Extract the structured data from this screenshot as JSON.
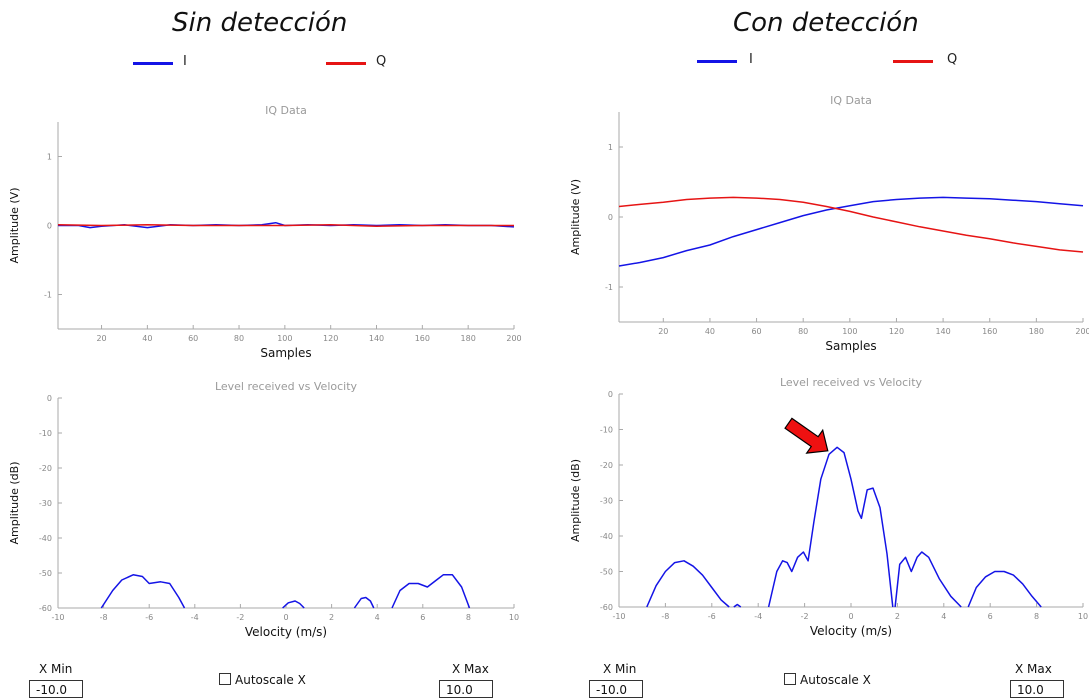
{
  "panels": [
    {
      "title": "Sin detección",
      "legend": [
        {
          "label": "I",
          "color": "#1414e6"
        },
        {
          "label": "Q",
          "color": "#e61414"
        }
      ],
      "controls": {
        "xmin_label": "X Min",
        "xmin_value": "-10.0",
        "autoscale_label": "Autoscale X",
        "xmax_label": "X Max",
        "xmax_value": "10.0"
      }
    },
    {
      "title": "Con detección",
      "legend": [
        {
          "label": "I",
          "color": "#1414e6"
        },
        {
          "label": "Q",
          "color": "#e61414"
        }
      ],
      "controls": {
        "xmin_label": "X Min",
        "xmin_value": "-10.0",
        "autoscale_label": "Autoscale X",
        "xmax_label": "X Max",
        "xmax_value": "10.0"
      }
    }
  ],
  "chart_data": [
    {
      "type": "line",
      "title": "IQ Data",
      "xlabel": "Samples",
      "ylabel": "Amplitude (V)",
      "xlim": [
        1,
        200
      ],
      "ylim": [
        -1.5,
        1.5
      ],
      "xticks": [
        "20",
        "40",
        "60",
        "80",
        "100",
        "120",
        "140",
        "160",
        "180",
        "200"
      ],
      "yticks": [
        "-1",
        "0",
        "1"
      ],
      "series": [
        {
          "name": "I",
          "color": "#1414e6",
          "x": [
            1,
            10,
            15,
            20,
            30,
            40,
            50,
            60,
            70,
            80,
            90,
            96,
            100,
            110,
            120,
            130,
            140,
            150,
            160,
            170,
            180,
            190,
            200
          ],
          "y": [
            0.0,
            0.0,
            -0.03,
            -0.01,
            0.01,
            -0.03,
            0.01,
            0.0,
            0.01,
            0.0,
            0.01,
            0.04,
            0.0,
            0.01,
            0.0,
            0.01,
            0.0,
            0.01,
            0.0,
            0.01,
            0.0,
            0.0,
            -0.02
          ]
        },
        {
          "name": "Q",
          "color": "#e61414",
          "x": [
            1,
            20,
            40,
            60,
            80,
            100,
            120,
            140,
            160,
            180,
            200
          ],
          "y": [
            0.01,
            0.0,
            0.01,
            0.0,
            0.0,
            0.0,
            0.01,
            -0.01,
            0.0,
            0.0,
            0.0
          ]
        }
      ]
    },
    {
      "type": "line",
      "title": "Level received vs Velocity",
      "xlabel": "Velocity (m/s)",
      "ylabel": "Amplitude (dB)",
      "xlim": [
        -10,
        10
      ],
      "ylim": [
        -60,
        0
      ],
      "xticks": [
        "-10",
        "-8",
        "-6",
        "-4",
        "-2",
        "0",
        "2",
        "4",
        "6",
        "8",
        "10"
      ],
      "yticks": [
        "0",
        "-10",
        "-20",
        "-30",
        "-40",
        "-50",
        "-60"
      ],
      "series": [
        {
          "name": "",
          "color": "#1414e6",
          "segments": [
            {
              "x": [
                -8.1,
                -7.6,
                -7.2,
                -6.7,
                -6.3,
                -6.0,
                -5.5,
                -5.1,
                -4.7,
                -4.45
              ],
              "y": [
                -60,
                -55,
                -52,
                -50.5,
                -51,
                -53,
                -52.5,
                -53,
                -57,
                -60
              ]
            },
            {
              "x": [
                -0.15,
                0.1,
                0.4,
                0.6,
                0.8
              ],
              "y": [
                -60,
                -58.5,
                -58,
                -58.7,
                -60
              ]
            },
            {
              "x": [
                3.0,
                3.3,
                3.5,
                3.7,
                3.85
              ],
              "y": [
                -60,
                -57.3,
                -57,
                -58,
                -60
              ]
            },
            {
              "x": [
                4.65,
                5.0,
                5.4,
                5.8,
                6.2,
                6.6,
                6.9,
                7.3,
                7.7,
                8.05
              ],
              "y": [
                -60,
                -55,
                -53,
                -53,
                -54,
                -52,
                -50.5,
                -50.5,
                -54,
                -60
              ]
            }
          ]
        }
      ]
    },
    {
      "type": "line",
      "title": "IQ Data",
      "xlabel": "Samples",
      "ylabel": "Amplitude (V)",
      "xlim": [
        1,
        200
      ],
      "ylim": [
        -1.5,
        1.5
      ],
      "xticks": [
        "20",
        "40",
        "60",
        "80",
        "100",
        "120",
        "140",
        "160",
        "180",
        "200"
      ],
      "yticks": [
        "-1",
        "0",
        "1"
      ],
      "series": [
        {
          "name": "I",
          "color": "#1414e6",
          "x": [
            1,
            10,
            20,
            30,
            40,
            50,
            60,
            70,
            80,
            90,
            100,
            110,
            120,
            130,
            140,
            150,
            160,
            170,
            180,
            190,
            200
          ],
          "y": [
            -0.7,
            -0.65,
            -0.58,
            -0.48,
            -0.4,
            -0.28,
            -0.18,
            -0.08,
            0.02,
            0.1,
            0.16,
            0.22,
            0.25,
            0.27,
            0.28,
            0.27,
            0.26,
            0.24,
            0.22,
            0.19,
            0.16
          ]
        },
        {
          "name": "Q",
          "color": "#e61414",
          "x": [
            1,
            10,
            20,
            30,
            40,
            50,
            60,
            70,
            80,
            90,
            100,
            110,
            120,
            130,
            140,
            150,
            160,
            170,
            180,
            190,
            200
          ],
          "y": [
            0.15,
            0.18,
            0.21,
            0.25,
            0.27,
            0.28,
            0.27,
            0.25,
            0.21,
            0.15,
            0.08,
            0.0,
            -0.07,
            -0.14,
            -0.2,
            -0.26,
            -0.31,
            -0.37,
            -0.42,
            -0.47,
            -0.5
          ]
        }
      ]
    },
    {
      "type": "line",
      "title": "Level received vs Velocity",
      "xlabel": "Velocity (m/s)",
      "ylabel": "Amplitude (dB)",
      "xlim": [
        -10,
        10
      ],
      "ylim": [
        -60,
        0
      ],
      "xticks": [
        "-10",
        "-8",
        "-6",
        "-4",
        "-2",
        "0",
        "2",
        "4",
        "6",
        "8",
        "10"
      ],
      "yticks": [
        "0",
        "-10",
        "-20",
        "-30",
        "-40",
        "-50",
        "-60"
      ],
      "annotation": {
        "type": "arrow",
        "color": "#ee1111",
        "target_x": -1.0,
        "target_y": -16
      },
      "series": [
        {
          "name": "",
          "color": "#1414e6",
          "segments": [
            {
              "x": [
                -8.8,
                -8.4,
                -8.0,
                -7.6,
                -7.2,
                -6.8,
                -6.4,
                -6.0,
                -5.6,
                -5.25
              ],
              "y": [
                -60,
                -54,
                -50,
                -47.5,
                -47,
                -48.5,
                -51,
                -54.5,
                -58,
                -60
              ]
            },
            {
              "x": [
                -5.05,
                -4.9,
                -4.75
              ],
              "y": [
                -60,
                -59.3,
                -60
              ]
            },
            {
              "x": [
                -3.55,
                -3.2,
                -2.95,
                -2.75,
                -2.55,
                -2.3,
                -2.05,
                -1.85,
                -1.6,
                -1.3,
                -0.95,
                -0.6,
                -0.3,
                0.0,
                0.3,
                0.45,
                0.7,
                0.95,
                1.25,
                1.55,
                1.8
              ],
              "y": [
                -60,
                -50,
                -47,
                -47.5,
                -50,
                -46,
                -44.5,
                -47,
                -36,
                -24,
                -17,
                -15,
                -16.5,
                -24,
                -33,
                -35,
                -27,
                -26.5,
                -32,
                -45,
                -60
              ]
            },
            {
              "x": [
                1.9,
                2.1,
                2.35,
                2.6,
                2.85,
                3.05,
                3.35,
                3.8,
                4.3,
                4.75
              ],
              "y": [
                -60,
                -48,
                -46,
                -50,
                -46,
                -44.5,
                -46,
                -52,
                -57,
                -60
              ]
            },
            {
              "x": [
                5.05,
                5.4,
                5.8,
                6.2,
                6.6,
                7.0,
                7.4,
                7.8,
                8.2
              ],
              "y": [
                -60,
                -54.5,
                -51.5,
                -50,
                -50,
                -51,
                -53.5,
                -57,
                -60
              ]
            }
          ]
        }
      ]
    }
  ]
}
